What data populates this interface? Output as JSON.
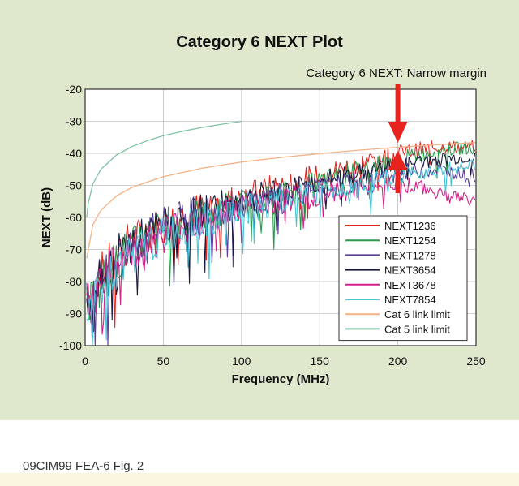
{
  "caption": "09CIM99 FEA-6 Fig. 2",
  "chart_data": {
    "type": "line",
    "title": "Category 6 NEXT Plot",
    "annotation": "Category 6 NEXT: Narrow margin",
    "xlabel": "Frequency (MHz)",
    "ylabel": "NEXT (dB)",
    "xlim": [
      0,
      250
    ],
    "ylim": [
      -100,
      -20
    ],
    "xticks": [
      0,
      50,
      100,
      150,
      200,
      250
    ],
    "yticks": [
      -20,
      -30,
      -40,
      -50,
      -60,
      -70,
      -80,
      -90,
      -100
    ],
    "grid": true,
    "legend_position": "bottom-right",
    "colors": {
      "background": "#dfe8cd",
      "plot_area": "#ffffff",
      "grid": "#bfbfbf",
      "arrow": "#e8231f"
    },
    "series": [
      {
        "name": "NEXT1236",
        "color": "#e8231f",
        "noisy": true,
        "x": [
          1,
          10,
          25,
          50,
          75,
          100,
          125,
          150,
          175,
          200,
          225,
          250
        ],
        "y": [
          -85,
          -78,
          -69,
          -62,
          -57,
          -54,
          -50,
          -47,
          -43,
          -40,
          -38,
          -38
        ]
      },
      {
        "name": "NEXT1254",
        "color": "#2a9a4a",
        "noisy": true,
        "x": [
          1,
          10,
          25,
          50,
          75,
          100,
          125,
          150,
          175,
          200,
          225,
          250
        ],
        "y": [
          -88,
          -80,
          -71,
          -63,
          -59,
          -56,
          -53,
          -49,
          -45,
          -42,
          -39,
          -38
        ]
      },
      {
        "name": "NEXT1278",
        "color": "#5a3d9a",
        "noisy": true,
        "x": [
          1,
          10,
          25,
          50,
          75,
          100,
          125,
          150,
          175,
          200,
          225,
          250
        ],
        "y": [
          -87,
          -79,
          -70,
          -63,
          -58,
          -56,
          -53,
          -51,
          -49,
          -46,
          -45,
          -47
        ]
      },
      {
        "name": "NEXT3654",
        "color": "#1a1a40",
        "noisy": true,
        "x": [
          1,
          10,
          25,
          50,
          75,
          100,
          125,
          150,
          175,
          200,
          225,
          250
        ],
        "y": [
          -86,
          -78,
          -70,
          -63,
          -58,
          -55,
          -52,
          -49,
          -46,
          -44,
          -42,
          -41
        ]
      },
      {
        "name": "NEXT3678",
        "color": "#d4208a",
        "noisy": true,
        "x": [
          1,
          10,
          25,
          50,
          75,
          100,
          125,
          150,
          175,
          200,
          225,
          250
        ],
        "y": [
          -89,
          -80,
          -72,
          -65,
          -60,
          -57,
          -55,
          -53,
          -51,
          -49,
          -52,
          -55
        ]
      },
      {
        "name": "NEXT7854",
        "color": "#46c6d8",
        "noisy": true,
        "x": [
          1,
          10,
          25,
          50,
          75,
          100,
          125,
          150,
          175,
          200,
          225,
          250
        ],
        "y": [
          -90,
          -81,
          -73,
          -66,
          -61,
          -58,
          -55,
          -52,
          -50,
          -47,
          -45,
          -44
        ]
      },
      {
        "name": "Cat 6 link limit",
        "color": "#f2b285",
        "noisy": false,
        "x": [
          1,
          5,
          10,
          20,
          30,
          50,
          75,
          100,
          125,
          150,
          175,
          200,
          225,
          250
        ],
        "y": [
          -72.7,
          -62.2,
          -57.8,
          -53.3,
          -50.6,
          -47.3,
          -44.6,
          -42.7,
          -41.3,
          -40.1,
          -39.0,
          -38.1,
          -37.3,
          -36.6
        ]
      },
      {
        "name": "Cat 5 link limit",
        "color": "#7fc3a3",
        "noisy": false,
        "x": [
          1,
          2,
          5,
          10,
          20,
          30,
          40,
          50,
          62.5,
          75,
          87.5,
          100
        ],
        "y": [
          -60.0,
          -55.5,
          -49.5,
          -45.0,
          -40.5,
          -37.9,
          -36.0,
          -34.5,
          -33.1,
          -31.9,
          -30.9,
          -30.0
        ]
      }
    ]
  }
}
